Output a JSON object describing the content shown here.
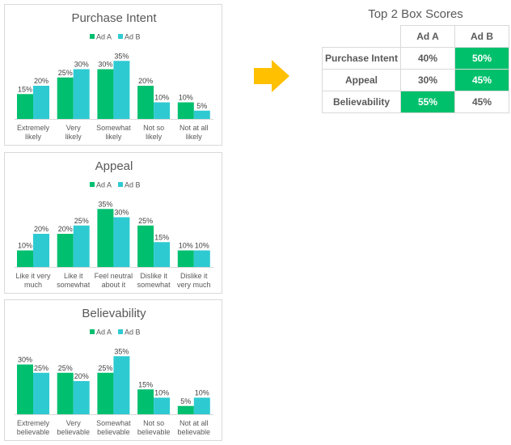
{
  "colors": {
    "ad_a": "#00bf6f",
    "ad_b": "#2ecad2",
    "arrow": "#ffc000",
    "highlight": "#00c06b"
  },
  "chart_data": [
    {
      "type": "bar",
      "title": "Purchase Intent",
      "categories": [
        "Extremely likely",
        "Very likely",
        "Somewhat likely",
        "Not so likely",
        "Not at all likely"
      ],
      "category_lines": [
        [
          "Extremely",
          "likely"
        ],
        [
          "Very",
          "likely"
        ],
        [
          "Somewhat",
          "likely"
        ],
        [
          "Not so",
          "likely"
        ],
        [
          "Not at all",
          "likely"
        ]
      ],
      "series": [
        {
          "name": "Ad A",
          "values": [
            15,
            25,
            30,
            20,
            10
          ]
        },
        {
          "name": "Ad B",
          "values": [
            20,
            30,
            35,
            10,
            5
          ]
        }
      ],
      "legend": "top",
      "grid": false,
      "unit": "%"
    },
    {
      "type": "bar",
      "title": "Appeal",
      "categories": [
        "Like it very much",
        "Like it somewhat",
        "Feel neutral about it",
        "Dislike it somewhat",
        "Dislike it very much"
      ],
      "category_lines": [
        [
          "Like it very",
          "much"
        ],
        [
          "Like it",
          "somewhat"
        ],
        [
          "Feel neutral",
          "about it"
        ],
        [
          "Dislike it",
          "somewhat"
        ],
        [
          "Dislike it",
          "very much"
        ]
      ],
      "series": [
        {
          "name": "Ad A",
          "values": [
            10,
            20,
            35,
            25,
            10
          ]
        },
        {
          "name": "Ad B",
          "values": [
            20,
            25,
            30,
            15,
            10
          ]
        }
      ],
      "legend": "top",
      "grid": false,
      "unit": "%"
    },
    {
      "type": "bar",
      "title": "Believability",
      "categories": [
        "Extremely believable",
        "Very believable",
        "Somewhat believable",
        "Not so believable",
        "Not at all believable"
      ],
      "category_lines": [
        [
          "Extremely",
          "believable"
        ],
        [
          "Very",
          "believable"
        ],
        [
          "Somewhat",
          "believable"
        ],
        [
          "Not so",
          "believable"
        ],
        [
          "Not at all",
          "believable"
        ]
      ],
      "series": [
        {
          "name": "Ad A",
          "values": [
            30,
            25,
            25,
            15,
            5
          ]
        },
        {
          "name": "Ad B",
          "values": [
            25,
            20,
            35,
            10,
            10
          ]
        }
      ],
      "legend": "top",
      "grid": false,
      "unit": "%"
    }
  ],
  "arrow_icon": "right-arrow",
  "top2box": {
    "title": "Top 2 Box Scores",
    "columns": [
      "Ad A",
      "Ad B"
    ],
    "rows": [
      {
        "label": "Purchase Intent",
        "values": [
          "40%",
          "50%"
        ],
        "highlight": 1
      },
      {
        "label": "Appeal",
        "values": [
          "30%",
          "45%"
        ],
        "highlight": 1
      },
      {
        "label": "Believability",
        "values": [
          "55%",
          "45%"
        ],
        "highlight": 0
      }
    ]
  }
}
